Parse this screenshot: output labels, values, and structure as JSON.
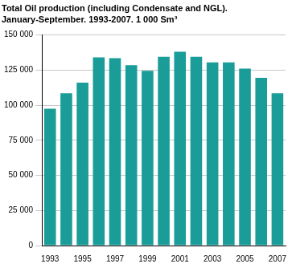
{
  "chart_data": {
    "type": "bar",
    "title": [
      "Total Oil production (including Condensate and NGL).",
      "January-September. 1993-2007. 1 000 Sm³"
    ],
    "categories": [
      "1993",
      null,
      "1995",
      null,
      "1997",
      null,
      "1999",
      null,
      "2001",
      null,
      "2003",
      null,
      "2005",
      null,
      "2007"
    ],
    "values": [
      97500,
      108500,
      116000,
      134000,
      133500,
      128500,
      124500,
      134500,
      138000,
      134500,
      130500,
      130500,
      126000,
      119500,
      108500
    ],
    "color": "#1a9c98",
    "ylim": [
      0,
      150000
    ],
    "yticks": [
      0,
      {
        "value": 25000,
        "label": "25 000"
      },
      {
        "value": 50000,
        "label": "50 000"
      },
      {
        "value": 75000,
        "label": "75 000"
      },
      {
        "value": 100000,
        "label": "100 000"
      },
      {
        "value": 125000,
        "label": "125 000"
      },
      {
        "value": 150000,
        "label": "150 000"
      }
    ],
    "grid": true
  }
}
